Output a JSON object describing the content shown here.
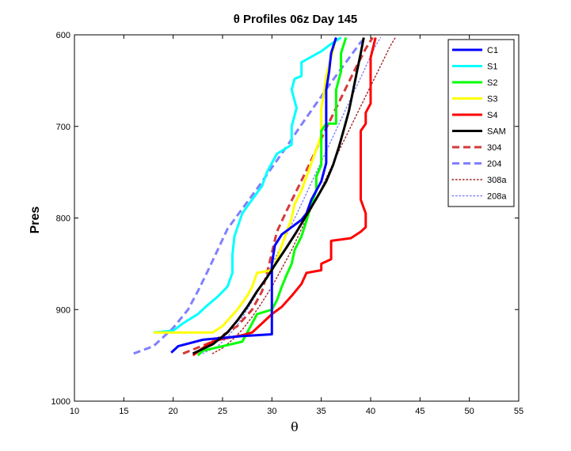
{
  "chart_data": {
    "type": "line",
    "title": "θ Profiles 06z Day 145",
    "xlabel": "θ",
    "ylabel": "Pres",
    "xlim": [
      10,
      55
    ],
    "ylim": [
      1000,
      600
    ],
    "x_ticks": [
      "10",
      "15",
      "20",
      "25",
      "30",
      "35",
      "40",
      "45",
      "50",
      "55"
    ],
    "y_ticks": [
      "600",
      "700",
      "800",
      "900",
      "1000"
    ],
    "grid": false,
    "legend_position": "top-right",
    "series": [
      {
        "name": "C1",
        "color": "#0000ff",
        "style": "solid",
        "points": [
          [
            19.8,
            947
          ],
          [
            20.5,
            940
          ],
          [
            23,
            933
          ],
          [
            27,
            929
          ],
          [
            30,
            927
          ],
          [
            30,
            924
          ],
          [
            30,
            900
          ],
          [
            30,
            880
          ],
          [
            30,
            860
          ],
          [
            30,
            850
          ],
          [
            30.3,
            830
          ],
          [
            31,
            818
          ],
          [
            32,
            810
          ],
          [
            33,
            802
          ],
          [
            33.5,
            795
          ],
          [
            34,
            780
          ],
          [
            35,
            760
          ],
          [
            35.5,
            740
          ],
          [
            35.5,
            720
          ],
          [
            35.5,
            700
          ],
          [
            35.5,
            680
          ],
          [
            35.5,
            660
          ],
          [
            35.8,
            640
          ],
          [
            36,
            620
          ],
          [
            36.5,
            603
          ]
        ]
      },
      {
        "name": "S1",
        "color": "#00ffff",
        "style": "solid",
        "points": [
          [
            18,
            925
          ],
          [
            20,
            923
          ],
          [
            21,
            915
          ],
          [
            22.5,
            905
          ],
          [
            23.5,
            895
          ],
          [
            24.5,
            886
          ],
          [
            25.5,
            875
          ],
          [
            26,
            860
          ],
          [
            26,
            840
          ],
          [
            26.2,
            820
          ],
          [
            27,
            795
          ],
          [
            28,
            780
          ],
          [
            29,
            765
          ],
          [
            29.5,
            750
          ],
          [
            30,
            740
          ],
          [
            30.5,
            730
          ],
          [
            32,
            720
          ],
          [
            32,
            700
          ],
          [
            32.5,
            680
          ],
          [
            32,
            660
          ],
          [
            32.3,
            648
          ],
          [
            33,
            645
          ],
          [
            33,
            630
          ],
          [
            35,
            618
          ],
          [
            36,
            610
          ],
          [
            37,
            603
          ]
        ]
      },
      {
        "name": "S2",
        "color": "#00ff00",
        "style": "solid",
        "points": [
          [
            22.5,
            950
          ],
          [
            23,
            945
          ],
          [
            25,
            940
          ],
          [
            27,
            935
          ],
          [
            27.5,
            925
          ],
          [
            28,
            915
          ],
          [
            28.5,
            905
          ],
          [
            30,
            900
          ],
          [
            30.5,
            890
          ],
          [
            31,
            875
          ],
          [
            31.5,
            862
          ],
          [
            32,
            850
          ],
          [
            32.3,
            835
          ],
          [
            33,
            820
          ],
          [
            33.5,
            803
          ],
          [
            34,
            785
          ],
          [
            34.5,
            770
          ],
          [
            34.5,
            755
          ],
          [
            35,
            742
          ],
          [
            35,
            725
          ],
          [
            35,
            712
          ],
          [
            35,
            705
          ],
          [
            35.5,
            697
          ],
          [
            36.5,
            697
          ],
          [
            36.5,
            680
          ],
          [
            36.5,
            660
          ],
          [
            37,
            640
          ],
          [
            37,
            620
          ],
          [
            37.5,
            603
          ]
        ]
      },
      {
        "name": "S3",
        "color": "#ffff00",
        "style": "solid",
        "points": [
          [
            18,
            925
          ],
          [
            24,
            925
          ],
          [
            25,
            918
          ],
          [
            26.5,
            900
          ],
          [
            27.5,
            885
          ],
          [
            28,
            875
          ],
          [
            28.5,
            860
          ],
          [
            30,
            857
          ],
          [
            30.5,
            845
          ],
          [
            31,
            830
          ],
          [
            31.5,
            815
          ],
          [
            32,
            800
          ],
          [
            32.3,
            785
          ],
          [
            33,
            770
          ],
          [
            33.5,
            755
          ],
          [
            34,
            740
          ],
          [
            34.5,
            725
          ],
          [
            35,
            710
          ],
          [
            35,
            695
          ],
          [
            35,
            680
          ],
          [
            35.3,
            662
          ],
          [
            35.5,
            645
          ],
          [
            36,
            625
          ],
          [
            36.5,
            603
          ]
        ]
      },
      {
        "name": "S4",
        "color": "#ff0000",
        "style": "solid",
        "points": [
          [
            22,
            950
          ],
          [
            23,
            942
          ],
          [
            24,
            935
          ],
          [
            25,
            932
          ],
          [
            26,
            930
          ],
          [
            27,
            928
          ],
          [
            28,
            925
          ],
          [
            29,
            915
          ],
          [
            30,
            905
          ],
          [
            31,
            897
          ],
          [
            32,
            885
          ],
          [
            33,
            872
          ],
          [
            33.5,
            860
          ],
          [
            35,
            857
          ],
          [
            35,
            850
          ],
          [
            36,
            845
          ],
          [
            36,
            825
          ],
          [
            38,
            822
          ],
          [
            39,
            815
          ],
          [
            39.5,
            810
          ],
          [
            39.5,
            795
          ],
          [
            39,
            780
          ],
          [
            39,
            765
          ],
          [
            39,
            745
          ],
          [
            39,
            728
          ],
          [
            39,
            715
          ],
          [
            39,
            705
          ],
          [
            39.5,
            697
          ],
          [
            39.5,
            685
          ],
          [
            40,
            675
          ],
          [
            40,
            660
          ],
          [
            40,
            645
          ],
          [
            40,
            625
          ],
          [
            40.5,
            603
          ]
        ]
      },
      {
        "name": "SAM",
        "color": "#000000",
        "style": "solid",
        "points": [
          [
            22,
            948
          ],
          [
            24,
            938
          ],
          [
            25.5,
            925
          ],
          [
            26.5,
            912
          ],
          [
            27.5,
            897
          ],
          [
            28.5,
            880
          ],
          [
            29.5,
            865
          ],
          [
            30.5,
            848
          ],
          [
            31.5,
            832
          ],
          [
            32.5,
            815
          ],
          [
            33.5,
            797
          ],
          [
            34.5,
            779
          ],
          [
            35.5,
            760
          ],
          [
            36.2,
            742
          ],
          [
            36.8,
            722
          ],
          [
            37.3,
            703
          ],
          [
            37.8,
            683
          ],
          [
            38.2,
            662
          ],
          [
            38.6,
            641
          ],
          [
            39,
            620
          ],
          [
            39.3,
            603
          ]
        ]
      },
      {
        "name": "304",
        "color": "#d63a3a",
        "style": "dashed",
        "points": [
          [
            21,
            948
          ],
          [
            24,
            935
          ],
          [
            26.5,
            918
          ],
          [
            28,
            900
          ],
          [
            29,
            880
          ],
          [
            29.5,
            860
          ],
          [
            30,
            838
          ],
          [
            30.5,
            815
          ],
          [
            31.5,
            792
          ],
          [
            32.5,
            770
          ],
          [
            33.5,
            748
          ],
          [
            34.5,
            725
          ],
          [
            35.5,
            702
          ],
          [
            36.5,
            680
          ],
          [
            37.5,
            658
          ],
          [
            38.5,
            636
          ],
          [
            39.5,
            615
          ],
          [
            40.2,
            603
          ]
        ]
      },
      {
        "name": "204",
        "color": "#8080ff",
        "style": "dashed",
        "points": [
          [
            16,
            948
          ],
          [
            18,
            940
          ],
          [
            20,
            920
          ],
          [
            21.5,
            900
          ],
          [
            22.5,
            880
          ],
          [
            23.5,
            858
          ],
          [
            24.5,
            835
          ],
          [
            25.5,
            812
          ],
          [
            27,
            790
          ],
          [
            28.5,
            768
          ],
          [
            30,
            745
          ],
          [
            31.5,
            722
          ],
          [
            33,
            698
          ],
          [
            34.5,
            675
          ],
          [
            36,
            652
          ],
          [
            37.5,
            630
          ],
          [
            39,
            608
          ],
          [
            39.5,
            603
          ]
        ]
      },
      {
        "name": "308a",
        "color": "#a02020",
        "style": "dotted",
        "points": [
          [
            24,
            948
          ],
          [
            25,
            942
          ],
          [
            26,
            933
          ],
          [
            27,
            922
          ],
          [
            28,
            908
          ],
          [
            29,
            892
          ],
          [
            30,
            875
          ],
          [
            31,
            855
          ],
          [
            32,
            835
          ],
          [
            33,
            812
          ],
          [
            34,
            790
          ],
          [
            35,
            768
          ],
          [
            36,
            745
          ],
          [
            37,
            722
          ],
          [
            38,
            700
          ],
          [
            39,
            678
          ],
          [
            40,
            656
          ],
          [
            41,
            634
          ],
          [
            42,
            612
          ],
          [
            42.5,
            603
          ]
        ]
      },
      {
        "name": "208a",
        "color": "#8080ff",
        "style": "dotted",
        "points": [
          [
            23,
            948
          ],
          [
            24.5,
            940
          ],
          [
            25.5,
            930
          ],
          [
            26.5,
            917
          ],
          [
            27.5,
            900
          ],
          [
            28.5,
            882
          ],
          [
            29.5,
            862
          ],
          [
            30.5,
            840
          ],
          [
            31.5,
            818
          ],
          [
            32.5,
            796
          ],
          [
            33.5,
            773
          ],
          [
            34.5,
            750
          ],
          [
            35.5,
            727
          ],
          [
            36.5,
            704
          ],
          [
            37.5,
            681
          ],
          [
            38.5,
            658
          ],
          [
            39.5,
            635
          ],
          [
            40.5,
            612
          ],
          [
            41,
            603
          ]
        ]
      }
    ]
  }
}
